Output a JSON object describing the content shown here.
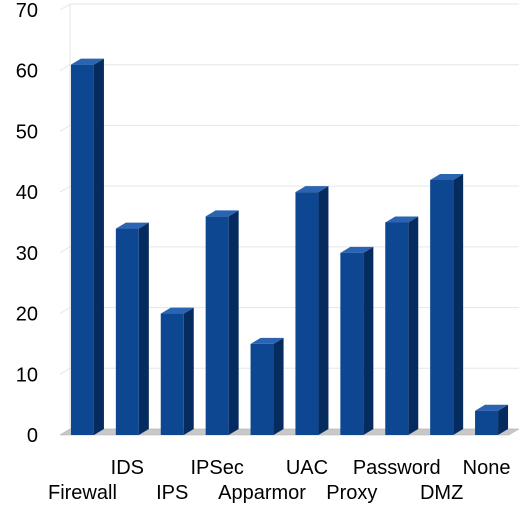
{
  "chart_data": {
    "type": "bar",
    "title": "",
    "xlabel": "",
    "ylabel": "",
    "categories": [
      "Firewall",
      "IDS",
      "IPS",
      "IPSec",
      "Apparmor",
      "UAC",
      "Proxy",
      "Password",
      "DMZ",
      "None"
    ],
    "values": [
      61,
      34,
      20,
      36,
      15,
      40,
      30,
      35,
      42,
      4
    ],
    "ylim": [
      0,
      70
    ],
    "yticks": [
      0,
      10,
      20,
      30,
      40,
      50,
      60,
      70
    ],
    "grid": true,
    "style": "3d-bar",
    "colors": {
      "bar_front": "#0d4791",
      "bar_side": "#062b5e",
      "bar_top": "#2a64b2",
      "floor": "#c8c8c8",
      "grid": "#e6e6e6"
    }
  }
}
